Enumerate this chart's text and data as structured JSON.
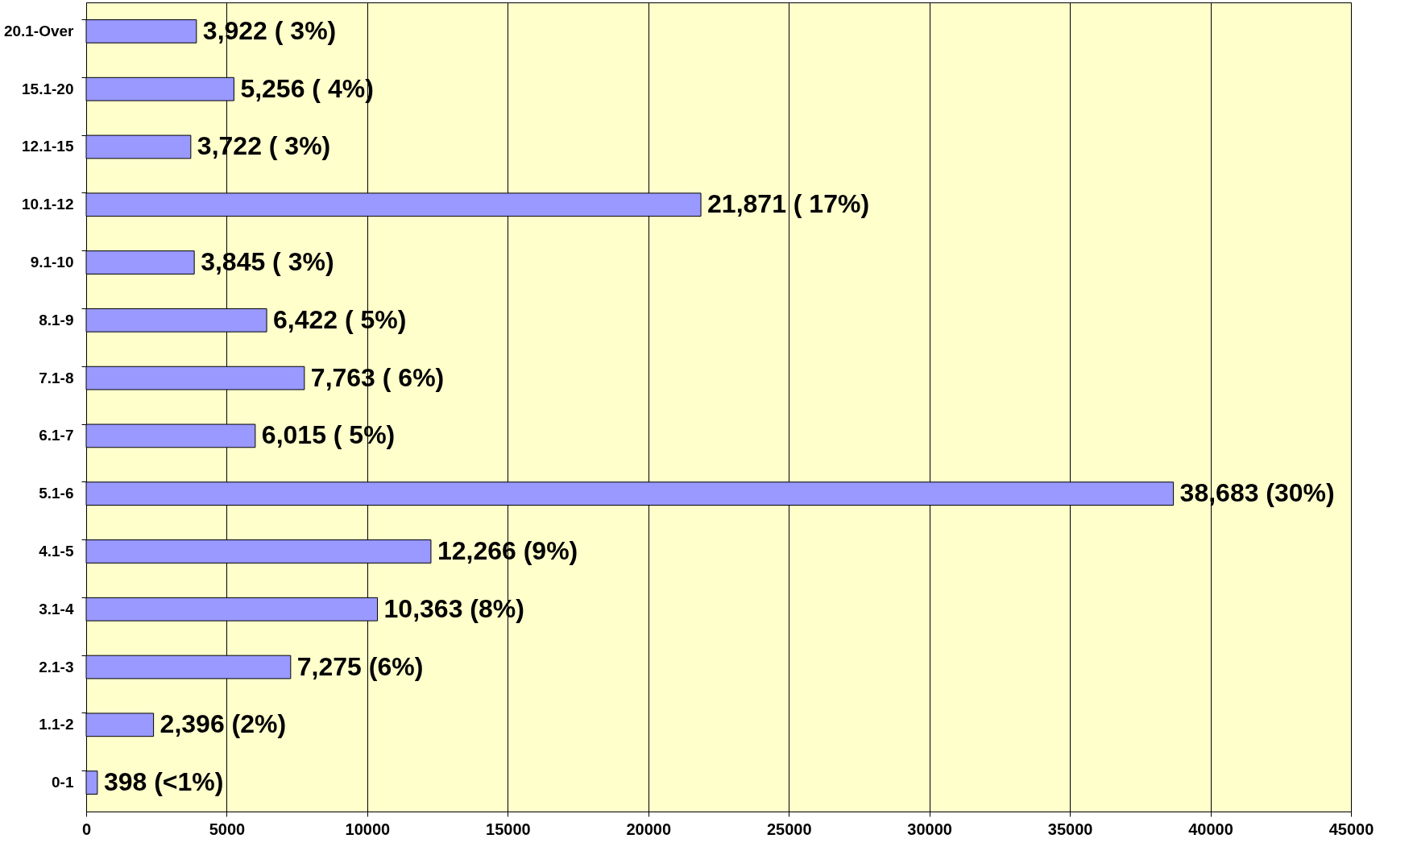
{
  "chart_data": {
    "type": "bar",
    "orientation": "horizontal",
    "categories": [
      "20.1-Over",
      "15.1-20",
      "12.1-15",
      "10.1-12",
      "9.1-10",
      "8.1-9",
      "7.1-8",
      "6.1-7",
      "5.1-6",
      "4.1-5",
      "3.1-4",
      "2.1-3",
      "1.1-2",
      "0-1"
    ],
    "values": [
      3922,
      5256,
      3722,
      21871,
      3845,
      6422,
      7763,
      6015,
      38683,
      12266,
      10363,
      7275,
      2396,
      398
    ],
    "value_labels": [
      "3,922  ( 3%)",
      "5,256  ( 4%)",
      "3,722  ( 3%)",
      "21,871  ( 17%)",
      "3,845  ( 3%)",
      "6,422  ( 5%)",
      "7,763  ( 6%)",
      "6,015  ( 5%)",
      "38,683  (30%)",
      "12,266  (9%)",
      "10,363 (8%)",
      "7,275  (6%)",
      "2,396  (2%)",
      "398 (<1%)"
    ],
    "color": "#9999ff",
    "xlim": [
      0,
      45000
    ],
    "xticks": [
      0,
      5000,
      10000,
      15000,
      20000,
      25000,
      30000,
      35000,
      40000,
      45000
    ],
    "grid": "x"
  }
}
